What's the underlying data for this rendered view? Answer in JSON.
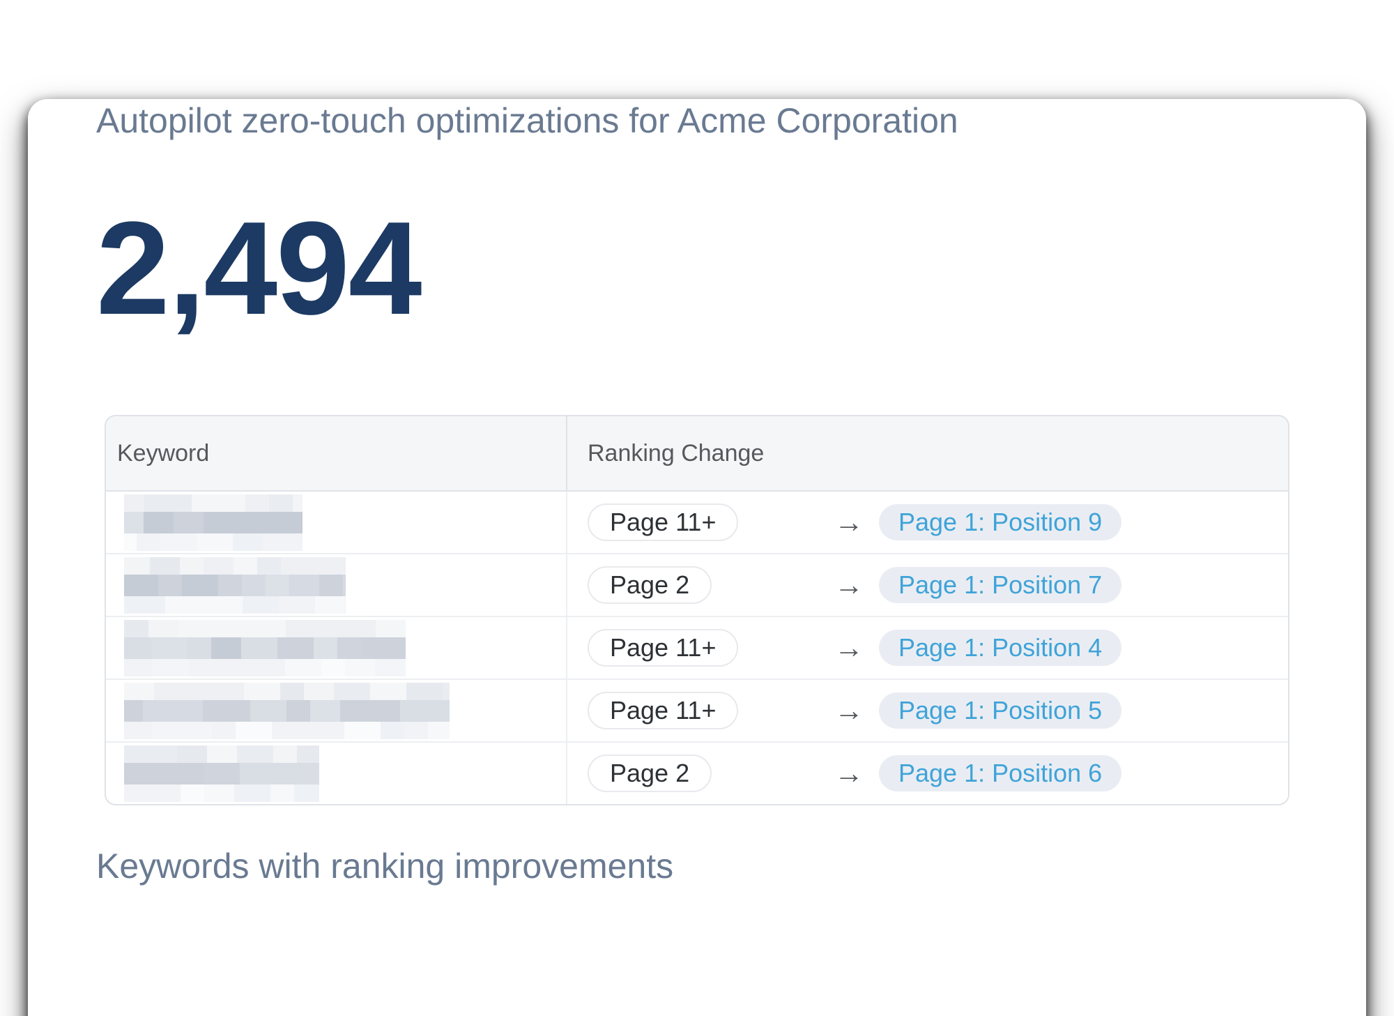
{
  "card": {
    "title": "Autopilot zero-touch optimizations for Acme Corporation",
    "metric_value": "2,494",
    "caption": "Keywords with ranking improvements"
  },
  "table": {
    "columns": [
      "Keyword",
      "Ranking Change"
    ],
    "arrow_icon": "→",
    "rows": [
      {
        "keyword_redacted": true,
        "blur_width": 256,
        "from": "Page 11+",
        "to": "Page 1: Position 9"
      },
      {
        "keyword_redacted": true,
        "blur_width": 318,
        "from": "Page 2",
        "to": "Page 1: Position 7"
      },
      {
        "keyword_redacted": true,
        "blur_width": 404,
        "from": "Page 11+",
        "to": "Page 1: Position 4"
      },
      {
        "keyword_redacted": true,
        "blur_width": 467,
        "from": "Page 11+",
        "to": "Page 1: Position 5"
      },
      {
        "keyword_redacted": true,
        "blur_width": 280,
        "from": "Page 2",
        "to": "Page 1: Position 6"
      }
    ]
  },
  "colors": {
    "card_bg": "#ffffff",
    "title_text": "#697a91",
    "metric_text": "#1c3a63",
    "header_bg": "#f5f6f7",
    "header_text": "#55585d",
    "table_border": "#dfe2e8",
    "row_divider": "#eceef2",
    "pill_from_text": "#2d3135",
    "pill_from_border": "#e7e9ec",
    "pill_to_bg": "#e9edf3",
    "pill_to_text": "#3fa3d8",
    "arrow": "#54585c"
  },
  "mosaic_palette": {
    "light": [
      "#e9ecf1",
      "#eef0f4",
      "#f2f4f6",
      "#e6eaef",
      "#f5f6f8"
    ],
    "dark": [
      "#c6ccd6",
      "#cdd2db",
      "#d6dae2",
      "#dce0e7",
      "#cfd4dd",
      "#d9dde4"
    ],
    "faint": [
      "#f4f5f8",
      "#f7f8fa",
      "#fafbfc",
      "#f1f3f6",
      "#eef1f5"
    ]
  }
}
